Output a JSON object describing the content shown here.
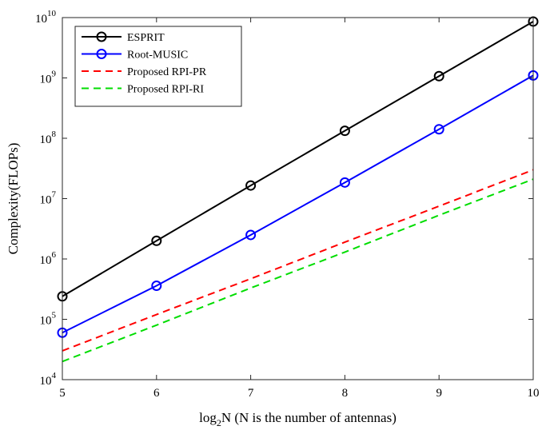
{
  "chart_data": {
    "type": "line",
    "title": "",
    "xlabel_prefix": "log",
    "xlabel_sub": "2",
    "xlabel_suffix": "N (N is the number of antennas)",
    "ylabel": "Complexity(FLOPs)",
    "x_scale": "linear",
    "y_scale": "log",
    "xlim": [
      5,
      10
    ],
    "ylim": [
      10000,
      10000000000
    ],
    "x_ticks": [
      5,
      6,
      7,
      8,
      9,
      10
    ],
    "y_ticks": [
      {
        "value": 10000,
        "base": "10",
        "exp": "4"
      },
      {
        "value": 100000,
        "base": "10",
        "exp": "5"
      },
      {
        "value": 1000000,
        "base": "10",
        "exp": "6"
      },
      {
        "value": 10000000,
        "base": "10",
        "exp": "7"
      },
      {
        "value": 100000000,
        "base": "10",
        "exp": "8"
      },
      {
        "value": 1000000000,
        "base": "10",
        "exp": "9"
      },
      {
        "value": 10000000000,
        "base": "10",
        "exp": "10"
      }
    ],
    "grid": false,
    "legend_position": "top-left",
    "x": [
      5,
      6,
      7,
      8,
      9,
      10
    ],
    "series": [
      {
        "name": "ESPRIT",
        "color": "#000000",
        "dash": "solid",
        "marker": "circle",
        "values": [
          240000,
          2000000,
          16500000,
          133000000,
          1070000000,
          8600000000
        ]
      },
      {
        "name": "Root-MUSIC",
        "color": "#0000ff",
        "dash": "solid",
        "marker": "circle",
        "values": [
          60000,
          360000,
          2500000,
          18500000,
          141000000,
          1100000000
        ]
      },
      {
        "name": "Proposed RPI-PR",
        "color": "#ff0000",
        "dash": "dashed",
        "marker": "none",
        "values": [
          30000,
          120000,
          470000,
          1900000,
          7500000,
          30000000
        ]
      },
      {
        "name": "Proposed RPI-RI",
        "color": "#00dd00",
        "dash": "dashed",
        "marker": "none",
        "values": [
          20000,
          80000,
          330000,
          1300000,
          5300000,
          21000000
        ]
      }
    ]
  }
}
